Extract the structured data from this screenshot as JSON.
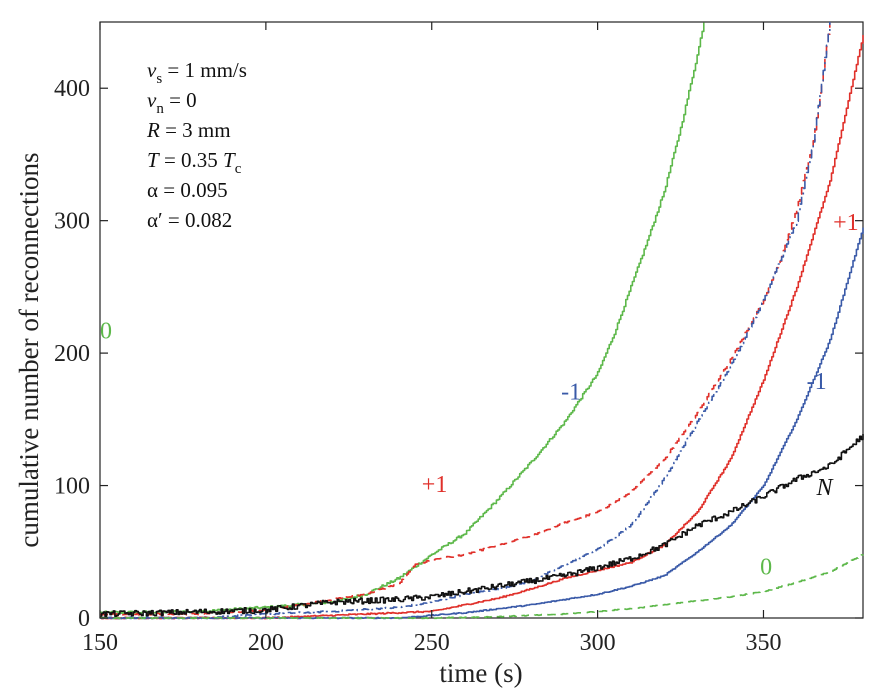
{
  "chart_data": {
    "type": "line",
    "xlabel": "time  (s)",
    "ylabel": "cumulative number of reconnections",
    "xlim": [
      150,
      380
    ],
    "ylim": [
      0,
      450
    ],
    "xticks": [
      150,
      200,
      250,
      300,
      350
    ],
    "yticks": [
      0,
      100,
      200,
      300,
      400
    ],
    "grid": false,
    "parameters": [
      {
        "id": "vs",
        "main": "v",
        "sub": "s",
        "rest": " = 1 mm/s"
      },
      {
        "id": "vn",
        "main": "v",
        "sub": "n",
        "rest": " = 0"
      },
      {
        "id": "R",
        "main": "R",
        "sub": "",
        "rest": " = 3 mm"
      },
      {
        "id": "T",
        "main": "T",
        "sub": "",
        "rest": " = 0.35 ",
        "main2": "T",
        "sub2": "c"
      },
      {
        "id": "alpha",
        "text": "α = 0.095"
      },
      {
        "id": "alphap",
        "text": "α′ = 0.082"
      }
    ],
    "series": [
      {
        "name": "green-solid",
        "label": "0",
        "color": "#5db84a",
        "style": "solid",
        "jitter": 1.0,
        "label_at": [
          150,
          211
        ],
        "x": [
          150,
          180,
          200,
          220,
          230,
          240,
          250,
          260,
          270,
          280,
          290,
          300,
          305,
          310,
          315,
          320,
          325,
          330,
          332
        ],
        "y": [
          4,
          5,
          8,
          12,
          18,
          30,
          48,
          64,
          90,
          118,
          148,
          185,
          215,
          250,
          285,
          322,
          370,
          425,
          450
        ]
      },
      {
        "name": "red-dashed",
        "label": "+1",
        "color": "#e0302a",
        "style": "dashed",
        "jitter": 0.6,
        "label_at": [
          247,
          95
        ],
        "x": [
          150,
          180,
          200,
          210,
          220,
          230,
          240,
          245,
          250,
          260,
          270,
          280,
          290,
          300,
          310,
          320,
          330,
          340,
          350,
          355,
          360,
          365,
          370
        ],
        "y": [
          3,
          3,
          6,
          10,
          14,
          18,
          26,
          40,
          44,
          48,
          55,
          62,
          72,
          80,
          95,
          120,
          155,
          195,
          240,
          270,
          310,
          360,
          450
        ]
      },
      {
        "name": "blue-dashdot",
        "label": "-1",
        "color": "#3a5aa8",
        "style": "dashdot",
        "jitter": 0.6,
        "label_at": [
          289,
          165
        ],
        "x": [
          150,
          180,
          200,
          220,
          240,
          250,
          260,
          270,
          280,
          290,
          300,
          310,
          320,
          330,
          340,
          350,
          360,
          365,
          370
        ],
        "y": [
          0,
          0,
          3,
          5,
          8,
          12,
          18,
          22,
          28,
          40,
          52,
          70,
          105,
          148,
          190,
          240,
          300,
          360,
          450
        ]
      },
      {
        "name": "red-solid",
        "label": "+1",
        "color": "#e0302a",
        "style": "solid",
        "jitter": 0.5,
        "label_at": [
          371,
          293
        ],
        "x": [
          150,
          200,
          230,
          250,
          260,
          270,
          280,
          290,
          300,
          310,
          320,
          330,
          340,
          350,
          360,
          370,
          380
        ],
        "y": [
          0,
          0,
          3,
          5,
          10,
          15,
          22,
          30,
          36,
          42,
          55,
          80,
          120,
          180,
          250,
          330,
          440
        ]
      },
      {
        "name": "blue-solid",
        "label": "-1",
        "color": "#3a5aa8",
        "style": "solid",
        "jitter": 0.4,
        "label_at": [
          363,
          173
        ],
        "x": [
          150,
          240,
          250,
          260,
          270,
          280,
          290,
          300,
          310,
          320,
          330,
          340,
          350,
          360,
          370,
          380
        ],
        "y": [
          0,
          0,
          2,
          4,
          7,
          10,
          14,
          18,
          24,
          32,
          50,
          70,
          100,
          150,
          210,
          295
        ]
      },
      {
        "name": "black-N",
        "label": "N",
        "color": "#111111",
        "style": "solid",
        "jitter": 2.2,
        "label_at": [
          366,
          93
        ],
        "x": [
          150,
          170,
          200,
          220,
          240,
          250,
          260,
          270,
          280,
          290,
          300,
          310,
          320,
          330,
          340,
          350,
          360,
          370,
          380
        ],
        "y": [
          3,
          4,
          6,
          12,
          14,
          16,
          20,
          24,
          28,
          32,
          38,
          45,
          55,
          70,
          80,
          92,
          105,
          115,
          138
        ]
      },
      {
        "name": "green-dashed",
        "label": "0",
        "color": "#5db84a",
        "style": "dashed",
        "jitter": 0.3,
        "label_at": [
          349,
          33
        ],
        "x": [
          150,
          250,
          270,
          290,
          300,
          310,
          320,
          330,
          340,
          350,
          360,
          370,
          380
        ],
        "y": [
          0,
          0,
          1,
          3,
          5,
          7,
          10,
          13,
          16,
          20,
          27,
          35,
          48
        ]
      }
    ]
  }
}
